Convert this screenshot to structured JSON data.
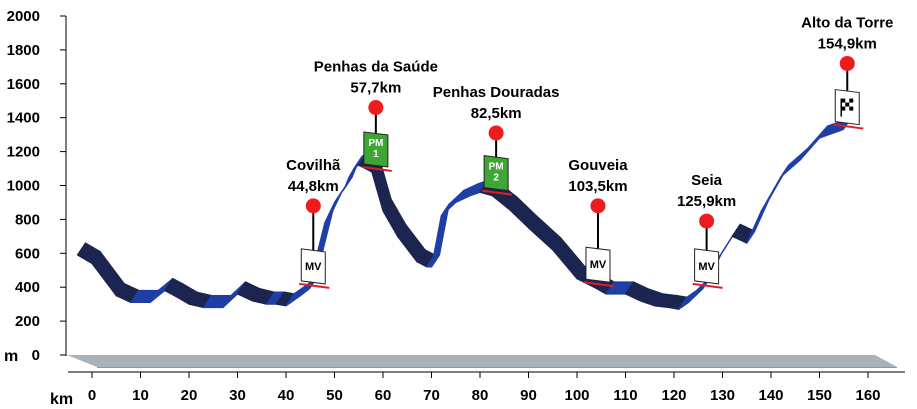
{
  "chart_data": {
    "type": "area",
    "title": "",
    "xlabel": "km",
    "ylabel": "m",
    "xlim": [
      0,
      160
    ],
    "ylim": [
      0,
      2000
    ],
    "x_ticks": [
      "0",
      "10",
      "20",
      "30",
      "40",
      "50",
      "60",
      "70",
      "80",
      "90",
      "100",
      "110",
      "120",
      "130",
      "140",
      "150",
      "160"
    ],
    "y_ticks": [
      "0",
      "200",
      "400",
      "600",
      "800",
      "1000",
      "1200",
      "1400",
      "1600",
      "1800",
      "2000"
    ],
    "profile": {
      "x": [
        -3,
        0,
        5,
        8,
        12,
        15,
        17,
        20,
        23,
        27,
        30,
        33,
        36,
        38,
        40,
        41,
        42,
        43,
        44.8,
        46,
        48,
        50,
        52,
        53,
        54,
        55,
        57.7,
        60,
        63,
        67,
        69,
        70,
        72,
        75,
        78,
        80,
        82.5,
        86,
        90,
        95,
        100,
        103.5,
        106,
        110,
        113,
        116,
        119,
        121,
        123,
        125.9,
        128,
        132,
        135,
        138,
        142,
        146,
        150,
        154.9
      ],
      "y": [
        590,
        540,
        350,
        310,
        310,
        380,
        350,
        300,
        280,
        280,
        360,
        320,
        300,
        300,
        290,
        310,
        330,
        350,
        390,
        550,
        780,
        900,
        980,
        1050,
        1100,
        1120,
        1080,
        850,
        700,
        550,
        520,
        520,
        820,
        900,
        940,
        960,
        940,
        860,
        750,
        620,
        450,
        400,
        360,
        360,
        320,
        290,
        280,
        270,
        310,
        390,
        520,
        700,
        660,
        850,
        1050,
        1150,
        1280,
        1330
      ]
    },
    "checkpoints": [
      {
        "name": "Covilhã",
        "distance": "44,8km",
        "km": 44.8,
        "badge": "MV",
        "type": "sprint"
      },
      {
        "name": "Penhas da Saúde",
        "distance": "57,7km",
        "km": 57.7,
        "badge": "PM 1",
        "type": "mountain"
      },
      {
        "name": "Penhas Douradas",
        "distance": "82,5km",
        "km": 82.5,
        "badge": "PM 2",
        "type": "mountain"
      },
      {
        "name": "Gouveia",
        "distance": "103,5km",
        "km": 103.5,
        "badge": "MV",
        "type": "sprint"
      },
      {
        "name": "Seia",
        "distance": "125,9km",
        "km": 125.9,
        "badge": "MV",
        "type": "sprint"
      },
      {
        "name": "Alto da Torre",
        "distance": "154,9km",
        "km": 154.9,
        "badge": "finish",
        "type": "finish"
      }
    ],
    "colors": {
      "climb": "#1e3fa6",
      "descent": "#1b2550",
      "base": "#a8b2b8",
      "marker": "#ee1c1c",
      "mountain_badge": "#3fa535"
    }
  }
}
